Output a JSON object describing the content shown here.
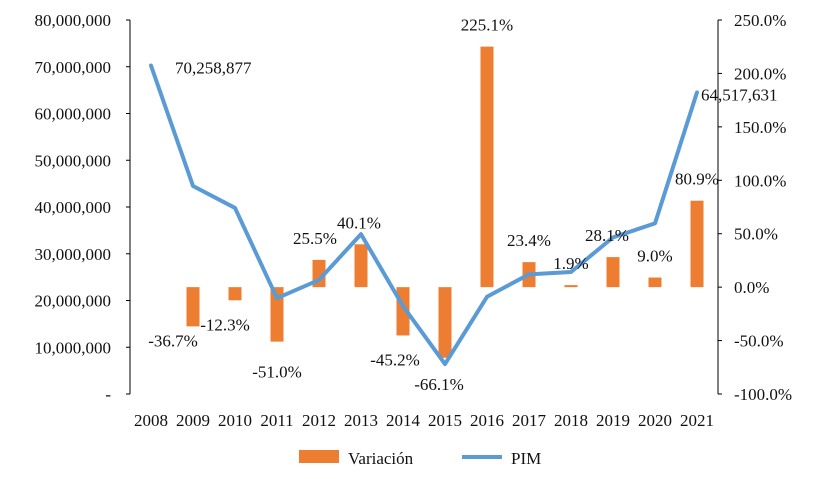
{
  "chart_data": {
    "type": "bar",
    "categories": [
      "2008",
      "2009",
      "2010",
      "2011",
      "2012",
      "2013",
      "2014",
      "2015",
      "2016",
      "2017",
      "2018",
      "2019",
      "2020",
      "2021"
    ],
    "series": [
      {
        "name": "Variación",
        "type": "bar",
        "axis": "right",
        "color": "#ED7D31",
        "values": [
          null,
          -36.7,
          -12.3,
          -51.0,
          25.5,
          40.1,
          -45.2,
          -66.1,
          225.1,
          23.4,
          1.9,
          28.1,
          9.0,
          80.9
        ],
        "labels": [
          "",
          "-36.7%",
          "-12.3%",
          "-51.0%",
          "25.5%",
          "40.1%",
          "-45.2%",
          "-66.1%",
          "225.1%",
          "23.4%",
          "1.9%",
          "28.1%",
          "9.0%",
          "80.9%"
        ]
      },
      {
        "name": "PIM",
        "type": "line",
        "axis": "left",
        "color": "#5B9BD5",
        "values": [
          70258877,
          44500000,
          39800000,
          20500000,
          24400000,
          34200000,
          18800000,
          6400000,
          20800000,
          25600000,
          26100000,
          33500000,
          36500000,
          64517631
        ],
        "labels": [
          "70,258,877",
          "",
          "",
          "",
          "",
          "",
          "",
          "",
          "",
          "",
          "",
          "",
          "",
          "64,517,631"
        ]
      }
    ],
    "y_left": {
      "ylim": [
        0,
        80000000
      ],
      "tick_values": [
        0,
        10000000,
        20000000,
        30000000,
        40000000,
        50000000,
        60000000,
        70000000,
        80000000
      ],
      "tick_labels": [
        "-",
        "10,000,000",
        "20,000,000",
        "30,000,000",
        "40,000,000",
        "50,000,000",
        "60,000,000",
        "70,000,000",
        "80,000,000"
      ]
    },
    "y_right": {
      "ylim": [
        -100,
        250
      ],
      "tick_values": [
        -100,
        -50,
        0,
        50,
        100,
        150,
        200,
        250
      ],
      "tick_labels": [
        "-100.0%",
        "-50.0%",
        "0.0%",
        "50.0%",
        "100.0%",
        "150.0%",
        "200.0%",
        "250.0%"
      ]
    },
    "grid": false,
    "legend": {
      "position": "bottom",
      "entries": [
        {
          "label": "Variación",
          "color": "#ED7D31",
          "kind": "bar"
        },
        {
          "label": "PIM",
          "color": "#5B9BD5",
          "kind": "line"
        }
      ]
    }
  }
}
